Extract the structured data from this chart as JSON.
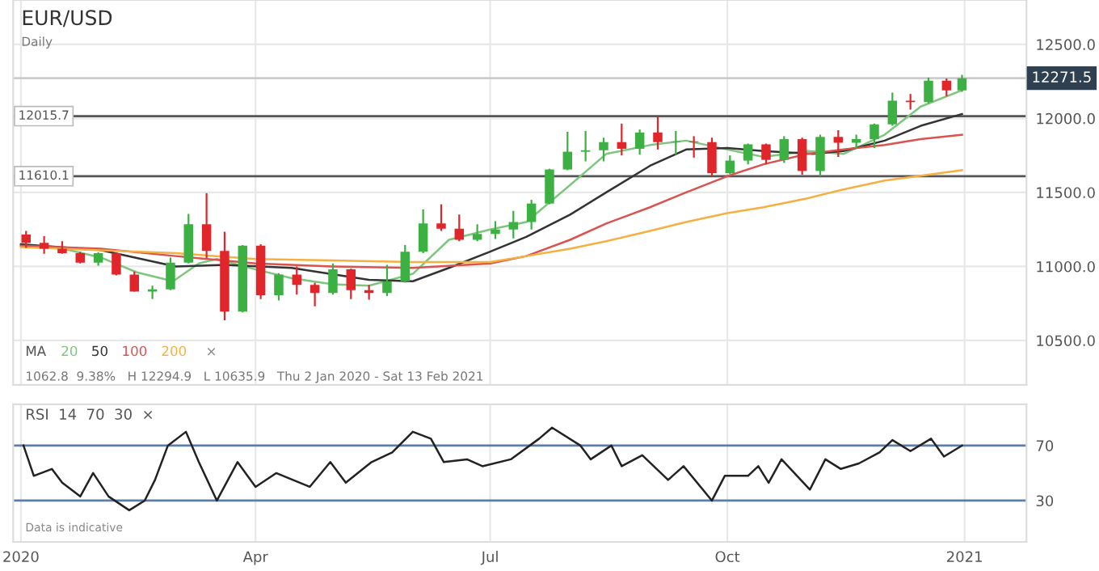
{
  "chart_data": [
    {
      "type": "candlestick",
      "title": "EUR/USD",
      "subtitle": "Daily",
      "legend_title": "MA",
      "legend": "bottom left",
      "grid": true,
      "tick_labels": "y",
      "x": [
        "2020-01-03",
        "2020-01-10",
        "2020-01-17",
        "2020-01-24",
        "2020-01-31",
        "2020-02-07",
        "2020-02-14",
        "2020-02-21",
        "2020-02-28",
        "2020-03-06",
        "2020-03-13",
        "2020-03-20",
        "2020-03-27",
        "2020-04-03",
        "2020-04-10",
        "2020-04-17",
        "2020-04-24",
        "2020-05-01",
        "2020-05-08",
        "2020-05-15",
        "2020-05-22",
        "2020-05-29",
        "2020-06-05",
        "2020-06-12",
        "2020-06-19",
        "2020-06-26",
        "2020-07-03",
        "2020-07-10",
        "2020-07-17",
        "2020-07-24",
        "2020-07-31",
        "2020-08-07",
        "2020-08-14",
        "2020-08-21",
        "2020-08-28",
        "2020-09-04",
        "2020-09-11",
        "2020-09-18",
        "2020-09-25",
        "2020-10-02",
        "2020-10-09",
        "2020-10-16",
        "2020-10-23",
        "2020-10-30",
        "2020-11-06",
        "2020-11-13",
        "2020-11-20",
        "2020-11-27",
        "2020-12-04",
        "2020-12-11",
        "2020-12-18",
        "2020-12-25",
        "2020-12-31"
      ],
      "ohlc": [
        [
          11215,
          11240,
          11125,
          11160
        ],
        [
          11160,
          11205,
          11085,
          11120
        ],
        [
          11120,
          11170,
          11085,
          11090
        ],
        [
          11090,
          11100,
          11020,
          11025
        ],
        [
          11025,
          11095,
          11005,
          11090
        ],
        [
          11090,
          11095,
          10940,
          10945
        ],
        [
          10945,
          10965,
          10830,
          10830
        ],
        [
          10830,
          10870,
          10780,
          10845
        ],
        [
          10845,
          11060,
          10840,
          11025
        ],
        [
          11025,
          11355,
          11020,
          11285
        ],
        [
          11285,
          11495,
          11055,
          11105
        ],
        [
          11105,
          11235,
          10635.9,
          10695
        ],
        [
          10695,
          11145,
          10690,
          11140
        ],
        [
          11140,
          11150,
          10780,
          10805
        ],
        [
          10805,
          10955,
          10770,
          10945
        ],
        [
          10945,
          11000,
          10810,
          10875
        ],
        [
          10875,
          10890,
          10730,
          10820
        ],
        [
          10820,
          11020,
          10810,
          10980
        ],
        [
          10980,
          10985,
          10780,
          10840
        ],
        [
          10840,
          10875,
          10775,
          10820
        ],
        [
          10820,
          11010,
          10800,
          10900
        ],
        [
          10900,
          11145,
          10890,
          11100
        ],
        [
          11100,
          11385,
          11090,
          11290
        ],
        [
          11290,
          11420,
          11240,
          11255
        ],
        [
          11255,
          11350,
          11170,
          11180
        ],
        [
          11180,
          11285,
          11170,
          11220
        ],
        [
          11220,
          11305,
          11185,
          11250
        ],
        [
          11250,
          11375,
          11190,
          11300
        ],
        [
          11300,
          11450,
          11250,
          11425
        ],
        [
          11425,
          11660,
          11420,
          11655
        ],
        [
          11655,
          11910,
          11650,
          11775
        ],
        [
          11775,
          11915,
          11710,
          11785
        ],
        [
          11785,
          11870,
          11710,
          11840
        ],
        [
          11840,
          11965,
          11750,
          11795
        ],
        [
          11795,
          11925,
          11755,
          11905
        ],
        [
          11905,
          12010,
          11790,
          11840
        ],
        [
          11840,
          11915,
          11755,
          11845
        ],
        [
          11845,
          11880,
          11735,
          11840
        ],
        [
          11840,
          11870,
          11610,
          11630
        ],
        [
          11630,
          11750,
          11625,
          11715
        ],
        [
          11715,
          11830,
          11690,
          11825
        ],
        [
          11825,
          11830,
          11690,
          11720
        ],
        [
          11720,
          11880,
          11700,
          11860
        ],
        [
          11860,
          11870,
          11620,
          11645
        ],
        [
          11645,
          11890,
          11610,
          11875
        ],
        [
          11875,
          11920,
          11740,
          11835
        ],
        [
          11835,
          11890,
          11800,
          11860
        ],
        [
          11860,
          11965,
          11800,
          11960
        ],
        [
          11960,
          12175,
          11950,
          12120
        ],
        [
          12120,
          12165,
          12060,
          12110
        ],
        [
          12110,
          12275,
          12100,
          12255
        ],
        [
          12255,
          12270,
          12150,
          12190
        ],
        [
          12190,
          12294.9,
          12180,
          12271.5
        ]
      ],
      "colors": [
        "#e0262b",
        "#e0262b",
        "#e0262b",
        "#e0262b",
        "#3cb043",
        "#e0262b",
        "#e0262b",
        "#3cb043",
        "#3cb043",
        "#3cb043",
        "#e0262b",
        "#e0262b",
        "#3cb043",
        "#e0262b",
        "#3cb043",
        "#e0262b",
        "#e0262b",
        "#3cb043",
        "#e0262b",
        "#e0262b",
        "#3cb043",
        "#3cb043",
        "#3cb043",
        "#e0262b",
        "#e0262b",
        "#3cb043",
        "#3cb043",
        "#3cb043",
        "#3cb043",
        "#3cb043",
        "#3cb043",
        "#3cb043",
        "#3cb043",
        "#e0262b",
        "#3cb043",
        "#e0262b",
        "#3cb043",
        "#e0262b",
        "#e0262b",
        "#3cb043",
        "#3cb043",
        "#e0262b",
        "#3cb043",
        "#e0262b",
        "#3cb043",
        "#e0262b",
        "#3cb043",
        "#3cb043",
        "#3cb043",
        "#e0262b",
        "#3cb043",
        "#e0262b",
        "#3cb043"
      ],
      "series": [
        {
          "name": "20",
          "type": "line",
          "color": "#7dc67d",
          "x": [
            "2020-01-15",
            "2020-02-01",
            "2020-02-15",
            "2020-02-29",
            "2020-03-10",
            "2020-03-17",
            "2020-04-01",
            "2020-04-15",
            "2020-05-01",
            "2020-05-15",
            "2020-06-01",
            "2020-06-15",
            "2020-07-01",
            "2020-07-15",
            "2020-08-01",
            "2020-08-15",
            "2020-09-01",
            "2020-09-15",
            "2020-10-01",
            "2020-10-15",
            "2020-11-01",
            "2020-11-15",
            "2020-12-01",
            "2020-12-15",
            "2020-12-31"
          ],
          "values": [
            11130,
            11060,
            10960,
            10900,
            11020,
            11050,
            10980,
            10920,
            10880,
            10870,
            10950,
            11180,
            11250,
            11300,
            11550,
            11760,
            11820,
            11850,
            11790,
            11740,
            11780,
            11760,
            11890,
            12080,
            12190
          ]
        },
        {
          "name": "50",
          "type": "line",
          "color": "#333333",
          "x": [
            "2020-01-01",
            "2020-02-01",
            "2020-03-01",
            "2020-03-20",
            "2020-04-15",
            "2020-05-15",
            "2020-06-01",
            "2020-06-15",
            "2020-07-01",
            "2020-07-15",
            "2020-08-01",
            "2020-08-15",
            "2020-09-01",
            "2020-09-15",
            "2020-10-01",
            "2020-10-15",
            "2020-11-03",
            "2020-11-15",
            "2020-12-01",
            "2020-12-15",
            "2020-12-31"
          ],
          "values": [
            11150,
            11110,
            11000,
            11010,
            10990,
            10910,
            10900,
            10990,
            11100,
            11200,
            11350,
            11500,
            11680,
            11790,
            11800,
            11780,
            11760,
            11780,
            11850,
            11950,
            12030
          ]
        },
        {
          "name": "100",
          "type": "line",
          "color": "#d9534f",
          "x": [
            "2020-01-01",
            "2020-02-01",
            "2020-03-01",
            "2020-04-01",
            "2020-05-01",
            "2020-06-01",
            "2020-07-01",
            "2020-07-15",
            "2020-08-01",
            "2020-08-15",
            "2020-09-01",
            "2020-09-15",
            "2020-10-01",
            "2020-10-15",
            "2020-11-01",
            "2020-11-15",
            "2020-12-01",
            "2020-12-15",
            "2020-12-31"
          ],
          "values": [
            11140,
            11120,
            11070,
            11020,
            11000,
            10990,
            11020,
            11070,
            11180,
            11290,
            11400,
            11500,
            11610,
            11690,
            11760,
            11790,
            11820,
            11860,
            11890
          ]
        },
        {
          "name": "200",
          "type": "line",
          "color": "#f5b041",
          "x": [
            "2020-01-01",
            "2020-03-01",
            "2020-04-01",
            "2020-05-01",
            "2020-06-01",
            "2020-07-01",
            "2020-07-15",
            "2020-08-01",
            "2020-08-15",
            "2020-09-01",
            "2020-09-15",
            "2020-10-01",
            "2020-10-15",
            "2020-11-01",
            "2020-11-15",
            "2020-12-01",
            "2020-12-31"
          ],
          "values": [
            11130,
            11090,
            11050,
            11040,
            11030,
            11030,
            11070,
            11120,
            11170,
            11240,
            11300,
            11360,
            11400,
            11460,
            11520,
            11580,
            11650
          ]
        }
      ],
      "xlim": [
        "2019-12-29",
        "2021-01-25"
      ],
      "xticks": [
        {
          "value": "2020-01-01",
          "label": null
        },
        {
          "value": "2020-04-01",
          "label": null
        },
        {
          "value": "2020-07-01",
          "label": null
        },
        {
          "value": "2020-10-01",
          "label": null
        },
        {
          "value": "2021-01-01",
          "label": null
        }
      ],
      "ylim": [
        10200,
        12800
      ],
      "yticks": [
        {
          "value": 10500,
          "label": "10500.0"
        },
        {
          "value": 11000,
          "label": "11000.0"
        },
        {
          "value": 11500,
          "label": "11500.0"
        },
        {
          "value": 12000,
          "label": "12000.0"
        },
        {
          "value": 12500,
          "label": "12500.0"
        }
      ],
      "ref_lines": [
        {
          "axis": "y",
          "value": 12015.7,
          "label": "12015.7",
          "color": "#555555"
        },
        {
          "axis": "y",
          "value": 11610.1,
          "label": "11610.1",
          "color": "#555555"
        },
        {
          "axis": "y",
          "value": 12271.5,
          "label": "12271.5",
          "color": "#cccccc"
        }
      ],
      "annotations": [
        "×",
        "1062.8  9.38%   H 12294.9   L 10635.9   Thu 2 Jan 2020 - Sat 13 Feb 2021"
      ]
    },
    {
      "type": "line",
      "title": "RSI  14  70  30  ×",
      "grid": "x",
      "series": [
        {
          "color": "#222222",
          "x": [
            "2020-01-02",
            "2020-01-06",
            "2020-01-13",
            "2020-01-17",
            "2020-01-24",
            "2020-01-29",
            "2020-02-04",
            "2020-02-12",
            "2020-02-18",
            "2020-02-22",
            "2020-02-27",
            "2020-03-05",
            "2020-03-10",
            "2020-03-17",
            "2020-03-25",
            "2020-04-01",
            "2020-04-09",
            "2020-04-22",
            "2020-04-30",
            "2020-05-06",
            "2020-05-16",
            "2020-05-24",
            "2020-06-01",
            "2020-06-08",
            "2020-06-13",
            "2020-06-22",
            "2020-06-28",
            "2020-07-09",
            "2020-07-20",
            "2020-07-25",
            "2020-08-05",
            "2020-08-09",
            "2020-08-17",
            "2020-08-21",
            "2020-08-29",
            "2020-09-08",
            "2020-09-14",
            "2020-09-25",
            "2020-09-30",
            "2020-10-09",
            "2020-10-13",
            "2020-10-17",
            "2020-10-22",
            "2020-11-02",
            "2020-11-08",
            "2020-11-14",
            "2020-11-21",
            "2020-11-29",
            "2020-12-04",
            "2020-12-11",
            "2020-12-19",
            "2020-12-24",
            "2020-12-31"
          ],
          "values": [
            70,
            48,
            53,
            43,
            33,
            50,
            33,
            23,
            30,
            45,
            70,
            80,
            58,
            30,
            58,
            40,
            50,
            40,
            58,
            43,
            58,
            65,
            80,
            75,
            58,
            60,
            55,
            60,
            75,
            83,
            70,
            60,
            70,
            55,
            63,
            45,
            55,
            30,
            48,
            48,
            55,
            43,
            60,
            38,
            60,
            53,
            57,
            65,
            74,
            66,
            75,
            62,
            70
          ]
        }
      ],
      "xlim": [
        "2019-12-29",
        "2021-01-25"
      ],
      "xticks": [
        {
          "value": "2020-01-01",
          "label": "2020"
        },
        {
          "value": "2020-04-01",
          "label": "Apr"
        },
        {
          "value": "2020-07-01",
          "label": "Jul"
        },
        {
          "value": "2020-10-01",
          "label": "Oct"
        },
        {
          "value": "2021-01-01",
          "label": "2021"
        }
      ],
      "ylim": [
        0,
        100
      ],
      "yticks": [
        30,
        70
      ],
      "ref_lines": [
        {
          "axis": "y",
          "value": 70,
          "color": "#5b7fa6"
        },
        {
          "axis": "y",
          "value": 30,
          "color": "#5b7fa6"
        }
      ],
      "annotations": [
        "Data is indicative"
      ]
    }
  ]
}
